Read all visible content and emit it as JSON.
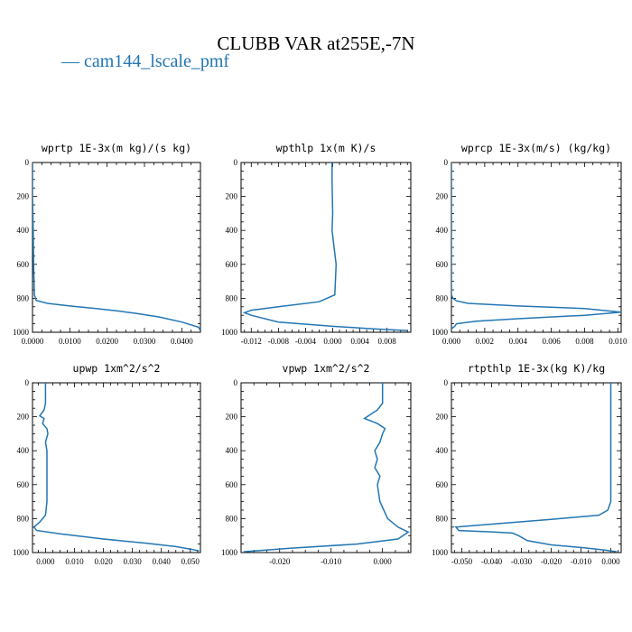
{
  "figure": {
    "title": "CLUBB VAR at255E,-7N",
    "legend_label": "cam144_lscale_pmf",
    "line_color": "#2276b3"
  },
  "chart_data": [
    {
      "type": "line",
      "title": "wprtp  1E-3x(m kg)/(s kg)",
      "xlim": [
        0.0,
        0.045
      ],
      "ylim": [
        1000,
        0
      ],
      "xticks": [
        "0.0000",
        "0.0100",
        "0.0200",
        "0.0300",
        "0.0400"
      ],
      "xtick_values": [
        0.0,
        0.01,
        0.02,
        0.03,
        0.04
      ],
      "yticks": [
        "0",
        "200",
        "400",
        "600",
        "800",
        "1000"
      ],
      "series": [
        {
          "x": [
            0.0,
            0.0,
            0.0002,
            0.0003,
            0.0005,
            0.001,
            0.004,
            0.01,
            0.017,
            0.023,
            0.028,
            0.034,
            0.04,
            0.0445,
            0.045
          ],
          "y": [
            0,
            200,
            400,
            600,
            780,
            812,
            830,
            845,
            860,
            875,
            890,
            910,
            940,
            970,
            990
          ]
        }
      ]
    },
    {
      "type": "line",
      "title": "wpthlp  1x(m K)/s",
      "xlim": [
        -0.0135,
        0.0115
      ],
      "ylim": [
        1000,
        0
      ],
      "xticks": [
        "-0.012",
        "-0.008",
        "-0.004",
        "0.000",
        "0.004",
        "0.008"
      ],
      "xtick_values": [
        -0.012,
        -0.008,
        -0.004,
        0.0,
        0.004,
        0.008
      ],
      "yticks": [
        "0",
        "200",
        "400",
        "600",
        "800",
        "1000"
      ],
      "series": [
        {
          "x": [
            -0.0001,
            -0.0001,
            -5e-05,
            0.0,
            -0.0001,
            0.0002,
            0.0005,
            0.0003,
            -0.002,
            -0.008,
            -0.012,
            -0.013,
            -0.012,
            -0.008,
            0.0,
            0.006,
            0.011
          ],
          "y": [
            0,
            100,
            200,
            300,
            400,
            500,
            600,
            780,
            820,
            850,
            870,
            885,
            900,
            940,
            965,
            980,
            990
          ]
        }
      ]
    },
    {
      "type": "line",
      "title": "wprcp  1E-3x(m/s) (kg/kg)",
      "xlim": [
        0.0,
        0.0102
      ],
      "ylim": [
        1000,
        0
      ],
      "xticks": [
        "0.000",
        "0.002",
        "0.004",
        "0.006",
        "0.008",
        "0.010"
      ],
      "xtick_values": [
        0.0,
        0.002,
        0.004,
        0.006,
        0.008,
        0.01
      ],
      "yticks": [
        "0",
        "200",
        "400",
        "600",
        "800",
        "1000"
      ],
      "series": [
        {
          "x": [
            0.0,
            0.0,
            0.0001,
            0.0003,
            0.001,
            0.004,
            0.008,
            0.0102,
            0.008,
            0.004,
            0.0015,
            0.0003,
            0.0002,
            0.0
          ],
          "y": [
            0,
            780,
            800,
            815,
            830,
            845,
            860,
            882,
            900,
            920,
            935,
            950,
            965,
            980
          ]
        }
      ]
    },
    {
      "type": "line",
      "title": "upwp  1xm^2/s^2",
      "xlim": [
        -0.0045,
        0.0535
      ],
      "ylim": [
        1000,
        0
      ],
      "xticks": [
        "0.000",
        "0.010",
        "0.020",
        "0.030",
        "0.040",
        "0.050"
      ],
      "xtick_values": [
        0.0,
        0.01,
        0.02,
        0.03,
        0.04,
        0.05
      ],
      "yticks": [
        "0",
        "200",
        "400",
        "600",
        "800",
        "1000"
      ],
      "series": [
        {
          "x": [
            0.0,
            0.0,
            -0.0005,
            -0.002,
            -0.0005,
            -0.001,
            0.0005,
            0.0008,
            0.0,
            0.0005,
            0.0005,
            0.0005,
            0.0005,
            0.0,
            -0.002,
            -0.004,
            -0.003,
            0.005,
            0.02,
            0.035,
            0.045,
            0.05,
            0.053
          ],
          "y": [
            0,
            120,
            160,
            195,
            210,
            240,
            270,
            300,
            350,
            400,
            500,
            600,
            700,
            780,
            820,
            850,
            870,
            890,
            920,
            945,
            965,
            980,
            990
          ]
        }
      ]
    },
    {
      "type": "line",
      "title": "vpwp  1xm^2/s^2",
      "xlim": [
        -0.0275,
        0.0055
      ],
      "ylim": [
        1000,
        0
      ],
      "xticks": [
        "-0.020",
        "-0.010",
        "0.000"
      ],
      "xtick_values": [
        -0.02,
        -0.01,
        0.0
      ],
      "yticks": [
        "0",
        "200",
        "400",
        "600",
        "800",
        "1000"
      ],
      "series": [
        {
          "x": [
            0.0,
            0.0,
            -0.001,
            -0.002,
            -0.0035,
            -0.001,
            0.0005,
            0.0,
            -0.0005,
            -0.0015,
            -0.001,
            -0.0015,
            -0.0005,
            -0.001,
            -0.0005,
            0.001,
            0.003,
            0.005,
            0.003,
            -0.005,
            -0.018,
            -0.027
          ],
          "y": [
            0,
            120,
            160,
            180,
            210,
            240,
            270,
            300,
            350,
            400,
            450,
            500,
            550,
            600,
            700,
            800,
            850,
            880,
            920,
            950,
            975,
            995
          ]
        }
      ]
    },
    {
      "type": "line",
      "title": "rtpthlp  1E-3x(kg K)/kg",
      "xlim": [
        -0.0535,
        0.0035
      ],
      "ylim": [
        1000,
        0
      ],
      "xticks": [
        "-0.050",
        "-0.040",
        "-0.030",
        "-0.020",
        "-0.010",
        "0.000"
      ],
      "xtick_values": [
        -0.05,
        -0.04,
        -0.03,
        -0.02,
        -0.01,
        0.0
      ],
      "yticks": [
        "0",
        "200",
        "400",
        "600",
        "800",
        "1000"
      ],
      "series": [
        {
          "x": [
            0.0,
            0.0,
            0.0,
            0.0,
            -0.001,
            -0.004,
            -0.02,
            -0.038,
            -0.052,
            -0.051,
            -0.04,
            -0.033,
            -0.031,
            -0.028,
            -0.02,
            -0.01,
            -0.002,
            0.002
          ],
          "y": [
            0,
            300,
            600,
            700,
            750,
            780,
            805,
            830,
            850,
            870,
            878,
            885,
            900,
            930,
            955,
            970,
            985,
            995
          ]
        }
      ]
    }
  ]
}
